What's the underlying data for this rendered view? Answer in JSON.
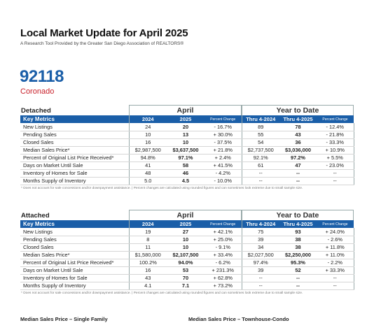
{
  "header": {
    "title": "Local Market Update for April 2025",
    "subtitle": "A Research Tool Provided by the Greater San Diego Association of REALTORS®",
    "zip": "92118",
    "city": "Coronado"
  },
  "columns": {
    "key_metrics": "Key Metrics",
    "april": "April",
    "ytd": "Year to Date",
    "y2024": "2024",
    "y2025": "2025",
    "pct": "Percent Change",
    "thru2024": "Thru 4-2024",
    "thru2025": "Thru 4-2025"
  },
  "detached": {
    "name": "Detached",
    "rows": [
      {
        "metric": "New Listings",
        "a24": "24",
        "a25": "20",
        "apc": "- 16.7%",
        "y24": "89",
        "y25": "78",
        "ypc": "- 12.4%"
      },
      {
        "metric": "Pending Sales",
        "a24": "10",
        "a25": "13",
        "apc": "+ 30.0%",
        "y24": "55",
        "y25": "43",
        "ypc": "- 21.8%"
      },
      {
        "metric": "Closed Sales",
        "a24": "16",
        "a25": "10",
        "apc": "- 37.5%",
        "y24": "54",
        "y25": "36",
        "ypc": "- 33.3%"
      },
      {
        "metric": "Median Sales Price*",
        "a24": "$2,987,500",
        "a25": "$3,637,500",
        "apc": "+ 21.8%",
        "y24": "$2,737,500",
        "y25": "$3,036,000",
        "ypc": "+ 10.9%"
      },
      {
        "metric": "Percent of Original List Price Received*",
        "a24": "94.8%",
        "a25": "97.1%",
        "apc": "+ 2.4%",
        "y24": "92.1%",
        "y25": "97.2%",
        "ypc": "+ 5.5%"
      },
      {
        "metric": "Days on Market Until Sale",
        "a24": "41",
        "a25": "58",
        "apc": "+ 41.5%",
        "y24": "61",
        "y25": "47",
        "ypc": "- 23.0%"
      },
      {
        "metric": "Inventory of Homes for Sale",
        "a24": "48",
        "a25": "46",
        "apc": "- 4.2%",
        "y24": "--",
        "y25": "--",
        "ypc": "--"
      },
      {
        "metric": "Months Supply of Inventory",
        "a24": "5.0",
        "a25": "4.5",
        "apc": "- 10.0%",
        "y24": "--",
        "y25": "--",
        "ypc": "--"
      }
    ],
    "note": "* Does not account for sale concessions and/or downpayment assistance. | Percent changes are calculated using rounded figures and can sometimes look extreme due to small sample size."
  },
  "attached": {
    "name": "Attached",
    "rows": [
      {
        "metric": "New Listings",
        "a24": "19",
        "a25": "27",
        "apc": "+ 42.1%",
        "y24": "75",
        "y25": "93",
        "ypc": "+ 24.0%"
      },
      {
        "metric": "Pending Sales",
        "a24": "8",
        "a25": "10",
        "apc": "+ 25.0%",
        "y24": "39",
        "y25": "38",
        "ypc": "- 2.6%"
      },
      {
        "metric": "Closed Sales",
        "a24": "11",
        "a25": "10",
        "apc": "- 9.1%",
        "y24": "34",
        "y25": "38",
        "ypc": "+ 11.8%"
      },
      {
        "metric": "Median Sales Price*",
        "a24": "$1,580,000",
        "a25": "$2,107,500",
        "apc": "+ 33.4%",
        "y24": "$2,027,500",
        "y25": "$2,250,000",
        "ypc": "+ 11.0%"
      },
      {
        "metric": "Percent of Original List Price Received*",
        "a24": "100.2%",
        "a25": "94.0%",
        "apc": "- 6.2%",
        "y24": "97.4%",
        "y25": "95.3%",
        "ypc": "- 2.2%"
      },
      {
        "metric": "Days on Market Until Sale",
        "a24": "16",
        "a25": "53",
        "apc": "+ 231.3%",
        "y24": "39",
        "y25": "52",
        "ypc": "+ 33.3%"
      },
      {
        "metric": "Inventory of Homes for Sale",
        "a24": "43",
        "a25": "70",
        "apc": "+ 62.8%",
        "y24": "--",
        "y25": "--",
        "ypc": "--"
      },
      {
        "metric": "Months Supply of Inventory",
        "a24": "4.1",
        "a25": "7.1",
        "apc": "+ 73.2%",
        "y24": "--",
        "y25": "--",
        "ypc": "--"
      }
    ],
    "note": "* Does not account for sale concessions and/or downpayment assistance. | Percent changes are calculated using rounded figures and can sometimes look extreme due to small sample size."
  },
  "bottom": {
    "left": "Median Sales Price – Single Family",
    "right": "Median Sales Price – Townhouse-Condo"
  },
  "colors": {
    "accent": "#1a5ea8",
    "city": "#c8202a"
  }
}
